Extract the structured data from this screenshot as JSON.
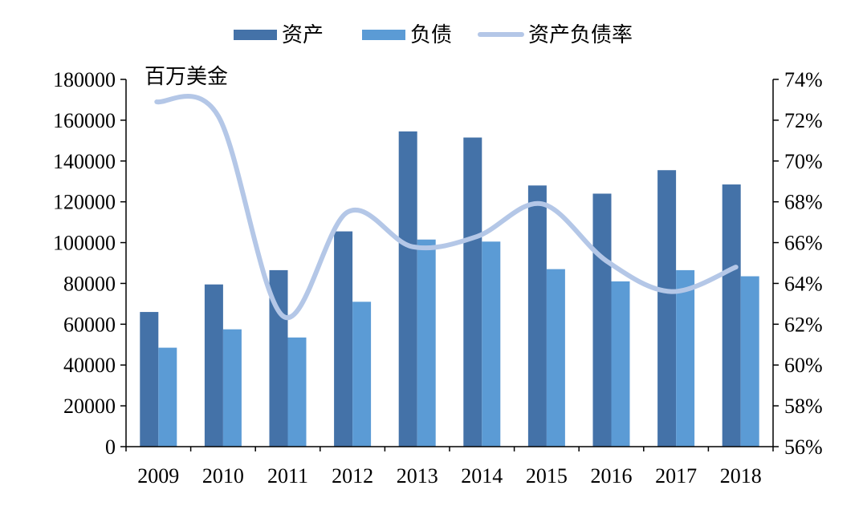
{
  "chart_data": {
    "type": "bar",
    "categories": [
      "2009",
      "2010",
      "2011",
      "2012",
      "2013",
      "2014",
      "2015",
      "2016",
      "2017",
      "2018"
    ],
    "series": [
      {
        "name": "资产",
        "type": "bar",
        "axis": "left",
        "color": "#4472a8",
        "values": [
          66000,
          79500,
          86500,
          105500,
          154500,
          151500,
          128000,
          124000,
          135500,
          128500
        ]
      },
      {
        "name": "负债",
        "type": "bar",
        "axis": "left",
        "color": "#5b9bd5",
        "values": [
          48500,
          57500,
          53500,
          71000,
          101500,
          100500,
          87000,
          81000,
          86500,
          83500
        ]
      },
      {
        "name": "资产负债率",
        "type": "line",
        "axis": "right",
        "color": "#b4c7e7",
        "values": [
          72.9,
          72.2,
          62.4,
          67.5,
          65.8,
          66.3,
          67.9,
          65.1,
          63.6,
          64.8
        ]
      }
    ],
    "unit_label": "百万美金",
    "y_left": {
      "lim": [
        0,
        180000
      ],
      "ticks": [
        "0",
        "20000",
        "40000",
        "60000",
        "80000",
        "100000",
        "120000",
        "140000",
        "160000",
        "180000"
      ]
    },
    "y_right": {
      "lim": [
        56,
        74
      ],
      "ticks": [
        "56%",
        "58%",
        "60%",
        "62%",
        "64%",
        "66%",
        "68%",
        "70%",
        "72%",
        "74%"
      ]
    },
    "legend_position": "top",
    "grid": false
  }
}
